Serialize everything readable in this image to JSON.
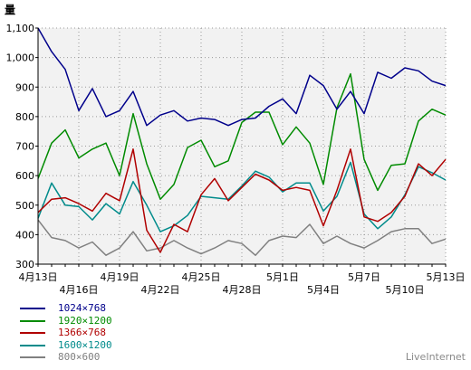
{
  "chart_data": {
    "type": "line",
    "ylabel": "量",
    "ylim": [
      300,
      1100
    ],
    "yticks": [
      "1,100",
      "1,000",
      "900",
      "800",
      "700",
      "600",
      "500",
      "400",
      "300"
    ],
    "ytick_values": [
      1100,
      1000,
      900,
      800,
      700,
      600,
      500,
      400,
      300
    ],
    "x_tick_labels_top": [
      {
        "i": 0,
        "label": "4月13日"
      },
      {
        "i": 6,
        "label": "4月19日"
      },
      {
        "i": 12,
        "label": "4月25日"
      },
      {
        "i": 18,
        "label": "5月1日"
      },
      {
        "i": 24,
        "label": "5月7日"
      },
      {
        "i": 30,
        "label": "5月13日"
      }
    ],
    "x_tick_labels_bottom": [
      {
        "i": 3,
        "label": "4月16日"
      },
      {
        "i": 9,
        "label": "4月22日"
      },
      {
        "i": 15,
        "label": "4月28日"
      },
      {
        "i": 21,
        "label": "5月4日"
      },
      {
        "i": 27,
        "label": "5月10日"
      }
    ],
    "n_points": 31,
    "grid": true,
    "legend_position": "bottom-left",
    "series": [
      {
        "name": "1024×768",
        "color": "#00008b",
        "values": [
          1100,
          1020,
          960,
          820,
          895,
          800,
          820,
          885,
          770,
          805,
          820,
          785,
          795,
          790,
          770,
          790,
          795,
          835,
          860,
          810,
          940,
          905,
          825,
          885,
          810,
          950,
          930,
          965,
          955,
          920,
          905
        ]
      },
      {
        "name": "1920×1200",
        "color": "#008b00",
        "values": [
          590,
          710,
          755,
          660,
          690,
          710,
          600,
          810,
          640,
          520,
          570,
          695,
          720,
          630,
          650,
          780,
          815,
          815,
          705,
          765,
          710,
          570,
          830,
          945,
          655,
          550,
          635,
          640,
          785,
          825,
          805
        ]
      },
      {
        "name": "1366×768",
        "color": "#b00000",
        "values": [
          475,
          520,
          525,
          505,
          480,
          540,
          515,
          690,
          415,
          340,
          435,
          410,
          535,
          590,
          515,
          560,
          605,
          585,
          550,
          560,
          550,
          430,
          550,
          690,
          460,
          445,
          475,
          530,
          640,
          600,
          655
        ]
      },
      {
        "name": "1600×1200",
        "color": "#008b8b",
        "values": [
          455,
          575,
          500,
          495,
          450,
          505,
          470,
          580,
          500,
          410,
          430,
          465,
          530,
          525,
          520,
          565,
          615,
          595,
          545,
          575,
          575,
          480,
          530,
          645,
          470,
          420,
          460,
          535,
          630,
          610,
          585
        ]
      },
      {
        "name": "800×600",
        "color": "#808080",
        "values": [
          450,
          390,
          380,
          355,
          375,
          330,
          355,
          410,
          345,
          355,
          380,
          355,
          335,
          355,
          380,
          370,
          330,
          380,
          395,
          390,
          435,
          370,
          395,
          370,
          355,
          380,
          410,
          420,
          420,
          370,
          385
        ]
      }
    ]
  },
  "watermark": "LiveInternet"
}
